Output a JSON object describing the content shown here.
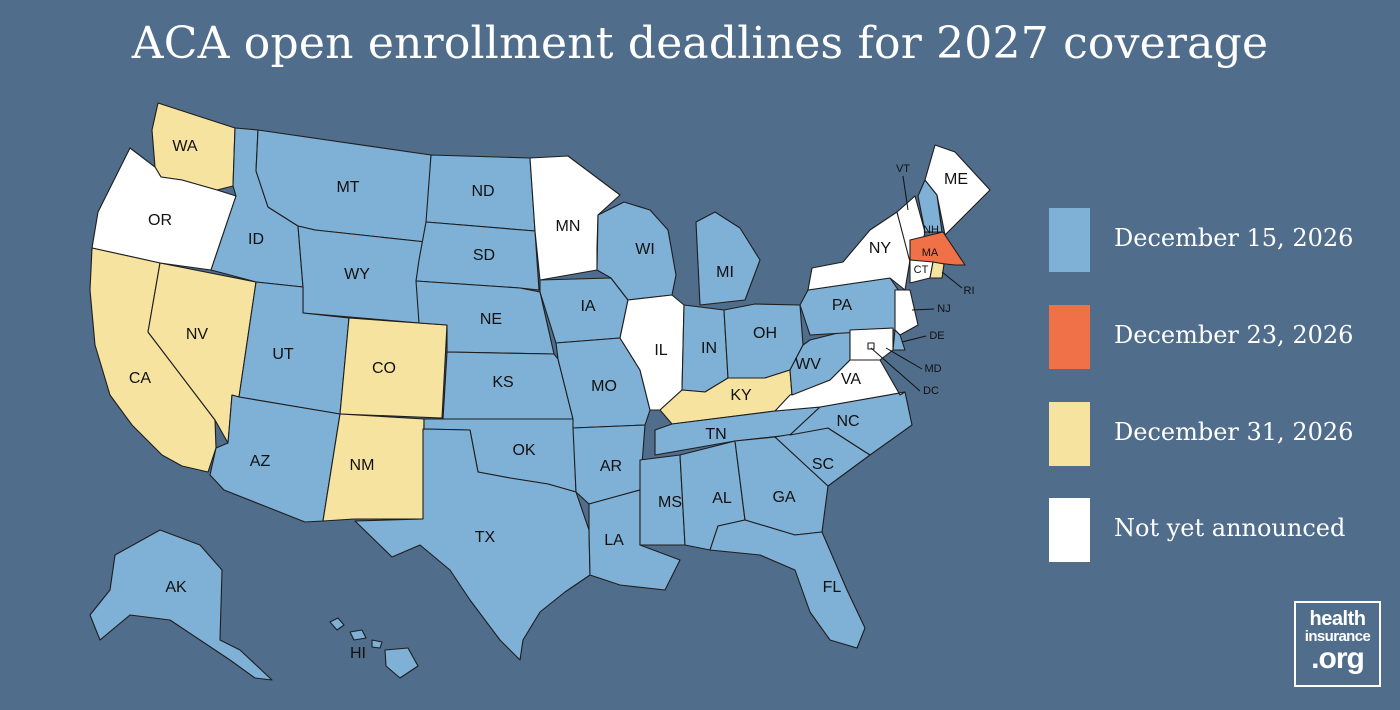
{
  "title": "ACA open enrollment deadlines for 2027 coverage",
  "colors": {
    "background": "#506d8b",
    "dec15": "#7fb0d5",
    "dec23": "#f07048",
    "dec31": "#f7e3a0",
    "not_announced": "#ffffff"
  },
  "legend": [
    {
      "key": "dec15",
      "label": "December 15, 2026",
      "color": "#7fb0d5"
    },
    {
      "key": "dec23",
      "label": "December 23, 2026",
      "color": "#f07048"
    },
    {
      "key": "dec31",
      "label": "December 31, 2026",
      "color": "#f7e3a0"
    },
    {
      "key": "not_announced",
      "label": "Not yet announced",
      "color": "#ffffff"
    }
  ],
  "states": [
    {
      "abbr": "WA",
      "category": "dec31"
    },
    {
      "abbr": "OR",
      "category": "not_announced"
    },
    {
      "abbr": "CA",
      "category": "dec31"
    },
    {
      "abbr": "NV",
      "category": "dec31"
    },
    {
      "abbr": "ID",
      "category": "dec15"
    },
    {
      "abbr": "MT",
      "category": "dec15"
    },
    {
      "abbr": "WY",
      "category": "dec15"
    },
    {
      "abbr": "UT",
      "category": "dec15"
    },
    {
      "abbr": "AZ",
      "category": "dec15"
    },
    {
      "abbr": "CO",
      "category": "dec31"
    },
    {
      "abbr": "NM",
      "category": "dec31"
    },
    {
      "abbr": "ND",
      "category": "dec15"
    },
    {
      "abbr": "SD",
      "category": "dec15"
    },
    {
      "abbr": "NE",
      "category": "dec15"
    },
    {
      "abbr": "KS",
      "category": "dec15"
    },
    {
      "abbr": "OK",
      "category": "dec15"
    },
    {
      "abbr": "TX",
      "category": "dec15"
    },
    {
      "abbr": "MN",
      "category": "not_announced"
    },
    {
      "abbr": "IA",
      "category": "dec15"
    },
    {
      "abbr": "MO",
      "category": "dec15"
    },
    {
      "abbr": "AR",
      "category": "dec15"
    },
    {
      "abbr": "LA",
      "category": "dec15"
    },
    {
      "abbr": "WI",
      "category": "dec15"
    },
    {
      "abbr": "IL",
      "category": "not_announced"
    },
    {
      "abbr": "MI",
      "category": "dec15"
    },
    {
      "abbr": "IN",
      "category": "dec15"
    },
    {
      "abbr": "OH",
      "category": "dec15"
    },
    {
      "abbr": "KY",
      "category": "dec31"
    },
    {
      "abbr": "TN",
      "category": "dec15"
    },
    {
      "abbr": "MS",
      "category": "dec15"
    },
    {
      "abbr": "AL",
      "category": "dec15"
    },
    {
      "abbr": "GA",
      "category": "dec15"
    },
    {
      "abbr": "FL",
      "category": "dec15"
    },
    {
      "abbr": "SC",
      "category": "dec15"
    },
    {
      "abbr": "NC",
      "category": "dec15"
    },
    {
      "abbr": "VA",
      "category": "not_announced"
    },
    {
      "abbr": "WV",
      "category": "dec15"
    },
    {
      "abbr": "PA",
      "category": "dec15"
    },
    {
      "abbr": "NY",
      "category": "not_announced"
    },
    {
      "abbr": "VT",
      "category": "not_announced"
    },
    {
      "abbr": "NH",
      "category": "dec15"
    },
    {
      "abbr": "ME",
      "category": "not_announced"
    },
    {
      "abbr": "MA",
      "category": "dec23"
    },
    {
      "abbr": "CT",
      "category": "not_announced"
    },
    {
      "abbr": "RI",
      "category": "dec31"
    },
    {
      "abbr": "NJ",
      "category": "not_announced"
    },
    {
      "abbr": "DE",
      "category": "dec15"
    },
    {
      "abbr": "MD",
      "category": "not_announced"
    },
    {
      "abbr": "DC",
      "category": "not_announced"
    },
    {
      "abbr": "AK",
      "category": "dec15"
    },
    {
      "abbr": "HI",
      "category": "dec15"
    }
  ],
  "logo": {
    "line1": "health",
    "line2": "insurance",
    "line3": ".org"
  }
}
